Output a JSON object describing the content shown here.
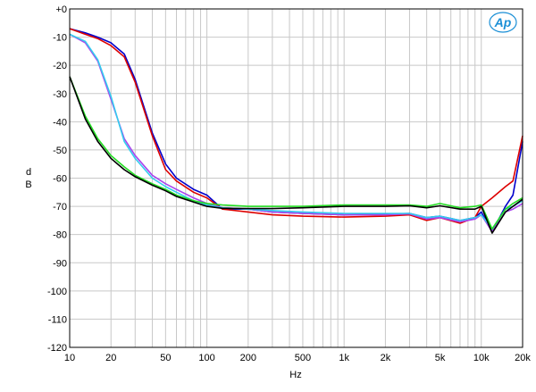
{
  "chart_data": {
    "type": "line",
    "xscale": "log",
    "xlim": [
      10,
      20000
    ],
    "ylim": [
      -120,
      0
    ],
    "xlabel": "Hz",
    "ylabel": "dB",
    "ylabel_lines": [
      "d",
      "B"
    ],
    "grid": true,
    "logo": "Ap",
    "xticks": [
      {
        "v": 10,
        "label": "10"
      },
      {
        "v": 20,
        "label": "20"
      },
      {
        "v": 50,
        "label": "50"
      },
      {
        "v": 100,
        "label": "100"
      },
      {
        "v": 200,
        "label": "200"
      },
      {
        "v": 500,
        "label": "500"
      },
      {
        "v": 1000,
        "label": "1k"
      },
      {
        "v": 2000,
        "label": "2k"
      },
      {
        "v": 5000,
        "label": "5k"
      },
      {
        "v": 10000,
        "label": "10k"
      },
      {
        "v": 20000,
        "label": "20k"
      }
    ],
    "yticks": [
      {
        "v": 0,
        "label": "+0"
      },
      {
        "v": -10,
        "label": "-10"
      },
      {
        "v": -20,
        "label": "-20"
      },
      {
        "v": -30,
        "label": "-30"
      },
      {
        "v": -40,
        "label": "-40"
      },
      {
        "v": -50,
        "label": "-50"
      },
      {
        "v": -60,
        "label": "-60"
      },
      {
        "v": -70,
        "label": "-70"
      },
      {
        "v": -80,
        "label": "-80"
      },
      {
        "v": -90,
        "label": "-90"
      },
      {
        "v": -100,
        "label": "-100"
      },
      {
        "v": -110,
        "label": "-110"
      },
      {
        "v": -120,
        "label": "-120"
      }
    ],
    "series": [
      {
        "color": "#0000cc",
        "points": [
          [
            10,
            -7
          ],
          [
            13,
            -8.5
          ],
          [
            16,
            -10
          ],
          [
            20,
            -12
          ],
          [
            25,
            -16
          ],
          [
            30,
            -25
          ],
          [
            40,
            -44
          ],
          [
            50,
            -55
          ],
          [
            60,
            -60
          ],
          [
            80,
            -64
          ],
          [
            100,
            -66
          ],
          [
            130,
            -71
          ],
          [
            200,
            -71
          ],
          [
            300,
            -72
          ],
          [
            500,
            -72.5
          ],
          [
            1000,
            -73
          ],
          [
            2000,
            -72.8
          ],
          [
            3000,
            -72.5
          ],
          [
            4000,
            -74
          ],
          [
            5000,
            -73.5
          ],
          [
            7000,
            -75
          ],
          [
            9000,
            -74
          ],
          [
            10000,
            -72
          ],
          [
            12000,
            -79
          ],
          [
            15000,
            -70
          ],
          [
            17000,
            -66
          ],
          [
            20000,
            -47
          ]
        ]
      },
      {
        "color": "#dd0000",
        "points": [
          [
            10,
            -7
          ],
          [
            13,
            -9
          ],
          [
            16,
            -10.5
          ],
          [
            20,
            -13
          ],
          [
            25,
            -17
          ],
          [
            30,
            -26
          ],
          [
            40,
            -45
          ],
          [
            50,
            -57
          ],
          [
            60,
            -61
          ],
          [
            80,
            -65
          ],
          [
            100,
            -67
          ],
          [
            130,
            -71
          ],
          [
            200,
            -72
          ],
          [
            300,
            -73
          ],
          [
            500,
            -73.5
          ],
          [
            1000,
            -73.8
          ],
          [
            2000,
            -73.5
          ],
          [
            3000,
            -73
          ],
          [
            4000,
            -75
          ],
          [
            5000,
            -74
          ],
          [
            7000,
            -76
          ],
          [
            9000,
            -74
          ],
          [
            10000,
            -70
          ],
          [
            12000,
            -67
          ],
          [
            15000,
            -63
          ],
          [
            17000,
            -61
          ],
          [
            20000,
            -45
          ]
        ]
      },
      {
        "color": "#aa44ee",
        "points": [
          [
            10,
            -9
          ],
          [
            13,
            -12
          ],
          [
            16,
            -18.5
          ],
          [
            20,
            -32
          ],
          [
            25,
            -46
          ],
          [
            30,
            -52
          ],
          [
            40,
            -59
          ],
          [
            50,
            -62
          ],
          [
            60,
            -64
          ],
          [
            80,
            -67
          ],
          [
            100,
            -69
          ],
          [
            130,
            -70.5
          ],
          [
            200,
            -71
          ],
          [
            300,
            -72
          ],
          [
            500,
            -72.5
          ],
          [
            1000,
            -73
          ],
          [
            2000,
            -73
          ],
          [
            3000,
            -72.7
          ],
          [
            4000,
            -74.5
          ],
          [
            5000,
            -74
          ],
          [
            7000,
            -75.5
          ],
          [
            9000,
            -74.5
          ],
          [
            10000,
            -73
          ],
          [
            12000,
            -79
          ],
          [
            15000,
            -72
          ],
          [
            17000,
            -71
          ],
          [
            20000,
            -69
          ]
        ]
      },
      {
        "color": "#33ccee",
        "points": [
          [
            10,
            -9
          ],
          [
            13,
            -11.5
          ],
          [
            16,
            -18
          ],
          [
            20,
            -31
          ],
          [
            25,
            -47
          ],
          [
            30,
            -53
          ],
          [
            40,
            -60
          ],
          [
            50,
            -63
          ],
          [
            60,
            -65
          ],
          [
            80,
            -68
          ],
          [
            100,
            -69.5
          ],
          [
            130,
            -70.5
          ],
          [
            200,
            -71
          ],
          [
            300,
            -71.5
          ],
          [
            500,
            -72
          ],
          [
            1000,
            -72.5
          ],
          [
            2000,
            -72.5
          ],
          [
            3000,
            -72.5
          ],
          [
            4000,
            -74
          ],
          [
            5000,
            -73.5
          ],
          [
            7000,
            -75
          ],
          [
            9000,
            -74
          ],
          [
            10000,
            -73
          ],
          [
            12000,
            -78
          ],
          [
            15000,
            -71
          ],
          [
            17000,
            -70
          ],
          [
            20000,
            -68
          ]
        ]
      },
      {
        "color": "#22dd22",
        "points": [
          [
            10,
            -24
          ],
          [
            13,
            -38
          ],
          [
            16,
            -46
          ],
          [
            20,
            -52
          ],
          [
            25,
            -56
          ],
          [
            30,
            -59
          ],
          [
            40,
            -62
          ],
          [
            50,
            -64
          ],
          [
            60,
            -66
          ],
          [
            80,
            -68
          ],
          [
            100,
            -69
          ],
          [
            130,
            -69.5
          ],
          [
            200,
            -70
          ],
          [
            300,
            -70
          ],
          [
            500,
            -70
          ],
          [
            1000,
            -69.5
          ],
          [
            2000,
            -69.5
          ],
          [
            3000,
            -69.5
          ],
          [
            4000,
            -70
          ],
          [
            5000,
            -69
          ],
          [
            7000,
            -70.5
          ],
          [
            9000,
            -70
          ],
          [
            10000,
            -69.5
          ],
          [
            12000,
            -78
          ],
          [
            15000,
            -71
          ],
          [
            17000,
            -69
          ],
          [
            20000,
            -67
          ]
        ]
      },
      {
        "color": "#000000",
        "points": [
          [
            10,
            -24
          ],
          [
            13,
            -39
          ],
          [
            16,
            -47
          ],
          [
            20,
            -53
          ],
          [
            25,
            -57
          ],
          [
            30,
            -59.5
          ],
          [
            40,
            -62.5
          ],
          [
            50,
            -64.5
          ],
          [
            60,
            -66.5
          ],
          [
            80,
            -68.5
          ],
          [
            100,
            -70
          ],
          [
            130,
            -70.7
          ],
          [
            200,
            -70.8
          ],
          [
            300,
            -70.8
          ],
          [
            500,
            -70.5
          ],
          [
            1000,
            -70
          ],
          [
            2000,
            -70
          ],
          [
            3000,
            -69.8
          ],
          [
            4000,
            -70.5
          ],
          [
            5000,
            -69.8
          ],
          [
            7000,
            -71
          ],
          [
            9000,
            -71
          ],
          [
            10000,
            -70
          ],
          [
            12000,
            -79.5
          ],
          [
            15000,
            -72
          ],
          [
            17000,
            -70
          ],
          [
            20000,
            -67.5
          ]
        ]
      }
    ]
  }
}
